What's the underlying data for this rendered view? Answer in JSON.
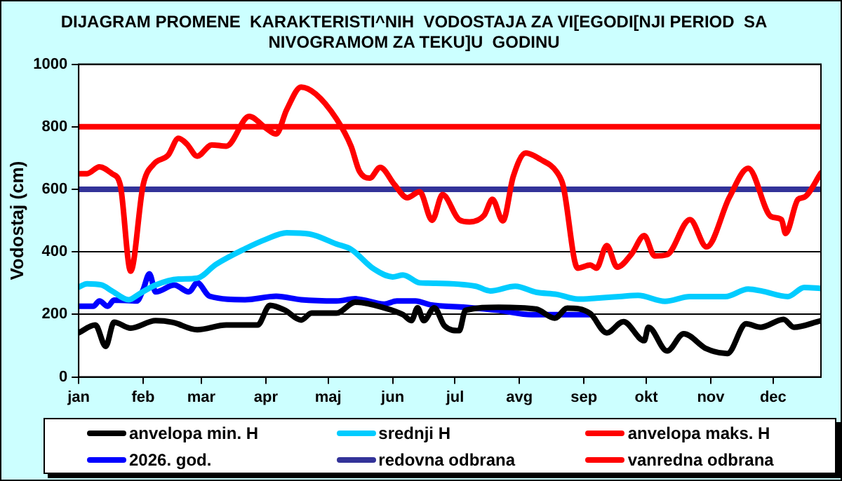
{
  "chart_data": {
    "type": "line",
    "title": "DIJAGRAM PROMENE  KARAKTERISTI^NIH  VODOSTAJA ZA VI[EGODI[NJI PERIOD  SA\nNIVOGRAMOM ZA TEKU]U  GODINU",
    "ylabel": "Vodostaj (cm)",
    "xlim": [
      "--01-01",
      "--12-24"
    ],
    "xticks": [
      {
        "value": "--01-01",
        "label": "jan"
      },
      {
        "value": "--02-01",
        "label": "feb"
      },
      {
        "value": "--03-01",
        "label": "mar"
      },
      {
        "value": "--04-01",
        "label": "apr"
      },
      {
        "value": "--05-01",
        "label": "maj"
      },
      {
        "value": "--06-01",
        "label": "jun"
      },
      {
        "value": "--07-01",
        "label": "jul"
      },
      {
        "value": "--08-01",
        "label": "avg"
      },
      {
        "value": "--09-01",
        "label": "sep"
      },
      {
        "value": "--10-01",
        "label": "okt"
      },
      {
        "value": "--11-01",
        "label": "nov"
      },
      {
        "value": "--12-01",
        "label": "dec"
      }
    ],
    "ylim": [
      0,
      1000
    ],
    "yticks": [
      0,
      200,
      400,
      600,
      800,
      1000
    ],
    "grid": "y",
    "legend": "bottom",
    "marker": "none",
    "line_style": "solid",
    "series": [
      {
        "name": "anvelopa min. H",
        "color": "#000000",
        "x": [
          "--01-01",
          "--01-09",
          "--01-14",
          "--01-18",
          "--01-26",
          "--02-07",
          "--02-15",
          "--02-27",
          "--03-13",
          "--03-28",
          "--04-03",
          "--04-10",
          "--04-18",
          "--04-23",
          "--05-05",
          "--05-14",
          "--05-28",
          "--06-06",
          "--06-10",
          "--06-13",
          "--06-16",
          "--06-21",
          "--06-26",
          "--07-03",
          "--07-06",
          "--07-22",
          "--08-09",
          "--08-18",
          "--08-24",
          "--09-04",
          "--09-12",
          "--09-20",
          "--09-30",
          "--10-02",
          "--10-11",
          "--10-19",
          "--10-30",
          "--11-09",
          "--11-18",
          "--11-25",
          "--12-06",
          "--12-11",
          "--12-24"
        ],
        "values": [
          141,
          166,
          98,
          175,
          156,
          180,
          175,
          151,
          166,
          166,
          229,
          214,
          182,
          204,
          204,
          239,
          221,
          199,
          180,
          221,
          180,
          221,
          163,
          148,
          213,
          223,
          217,
          188,
          220,
          203,
          141,
          177,
          116,
          159,
          83,
          138,
          90,
          75,
          170,
          159,
          184,
          159,
          180
        ]
      },
      {
        "name": "srednji H",
        "color": "#00ccff",
        "x": [
          "--01-01",
          "--01-05",
          "--01-12",
          "--01-17",
          "--01-25",
          "--01-30",
          "--02-07",
          "--02-18",
          "--02-27",
          "--03-08",
          "--03-22",
          "--04-01",
          "--04-11",
          "--04-22",
          "--05-05",
          "--05-12",
          "--05-23",
          "--06-01",
          "--06-06",
          "--06-14",
          "--06-18",
          "--07-11",
          "--07-18",
          "--07-30",
          "--08-09",
          "--08-19",
          "--08-29",
          "--09-07",
          "--09-18",
          "--09-27",
          "--10-10",
          "--10-22",
          "--11-08",
          "--11-19",
          "--11-26",
          "--12-08",
          "--12-16",
          "--12-24"
        ],
        "values": [
          287,
          298,
          294,
          275,
          247,
          265,
          294,
          313,
          316,
          360,
          410,
          440,
          461,
          457,
          425,
          408,
          345,
          320,
          326,
          301,
          300,
          290,
          275,
          290,
          271,
          264,
          249,
          252,
          257,
          261,
          242,
          257,
          257,
          281,
          274,
          257,
          286,
          283
        ]
      },
      {
        "name": "anvelopa maks. H",
        "color": "#ff0000",
        "x": [
          "--01-01",
          "--01-05",
          "--01-11",
          "--01-17",
          "--01-21",
          "--01-26",
          "--02-01",
          "--02-06",
          "--02-13",
          "--02-18",
          "--02-22",
          "--02-27",
          "--03-06",
          "--03-13",
          "--03-24",
          "--04-01",
          "--04-06",
          "--04-11",
          "--04-18",
          "--04-25",
          "--05-05",
          "--05-12",
          "--05-16",
          "--05-21",
          "--05-26",
          "--06-02",
          "--06-08",
          "--06-14",
          "--06-20",
          "--06-25",
          "--07-03",
          "--07-08",
          "--07-15",
          "--07-19",
          "--07-24",
          "--07-29",
          "--08-04",
          "--08-11",
          "--08-19",
          "--08-22",
          "--08-29",
          "--09-04",
          "--09-07",
          "--09-12",
          "--09-17",
          "--09-24",
          "--09-30",
          "--10-05",
          "--10-11",
          "--10-22",
          "--10-30",
          "--11-10",
          "--11-19",
          "--11-30",
          "--12-05",
          "--12-07",
          "--12-13",
          "--12-16",
          "--12-24"
        ],
        "values": [
          650,
          650,
          672,
          650,
          614,
          338,
          614,
          680,
          709,
          763,
          745,
          706,
          742,
          738,
          833,
          796,
          777,
          854,
          927,
          905,
          825,
          738,
          658,
          636,
          670,
          614,
          573,
          592,
          501,
          583,
          503,
          496,
          517,
          568,
          499,
          641,
          716,
          696,
          655,
          612,
          348,
          358,
          348,
          420,
          351,
          394,
          452,
          387,
          391,
          503,
          416,
          575,
          667,
          513,
          503,
          459,
          568,
          575,
          652
        ]
      },
      {
        "name": "2026. god.",
        "color": "#0000ff",
        "x": [
          "--01-01",
          "--01-08",
          "--01-11",
          "--01-15",
          "--01-18",
          "--01-29",
          "--02-01",
          "--02-04",
          "--02-07",
          "--02-16",
          "--02-23",
          "--02-27",
          "--03-05",
          "--03-22",
          "--04-06",
          "--04-18",
          "--05-05",
          "--05-14",
          "--05-28",
          "--06-03",
          "--06-12",
          "--06-19",
          "--07-06",
          "--07-22",
          "--08-07",
          "--08-20",
          "--09-04"
        ],
        "values": [
          226,
          226,
          243,
          226,
          246,
          243,
          279,
          330,
          272,
          294,
          272,
          301,
          258,
          247,
          258,
          247,
          243,
          250,
          233,
          243,
          243,
          231,
          223,
          213,
          199,
          199,
          199
        ]
      }
    ],
    "ref_lines": [
      {
        "axis": "y",
        "value": 600,
        "label": "redovna odbrana",
        "color": "#333399"
      },
      {
        "axis": "y",
        "value": 800,
        "label": "vanredna odbrana",
        "color": "#ff0000"
      }
    ]
  }
}
